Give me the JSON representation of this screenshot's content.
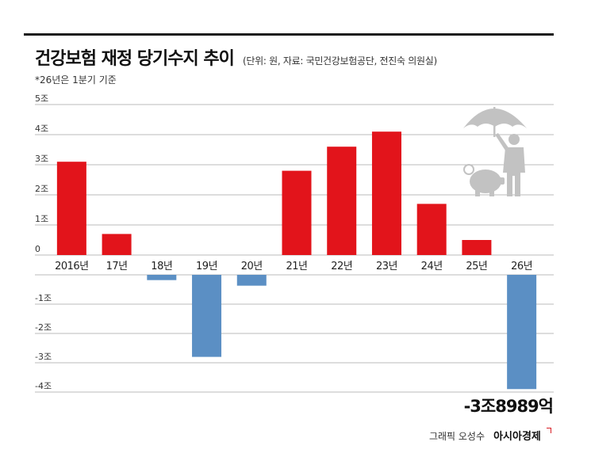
{
  "header": {
    "title": "건강보험 재정 당기수지 추이",
    "subtitle": "(단위: 원, 자료: 국민건강보험공단, 전진숙 의원실)",
    "note": "*26년은 1분기 기준"
  },
  "callout": "-3조8989억",
  "credit": {
    "graphic": "그래픽 오성수",
    "brand": "아시아경제"
  },
  "colors": {
    "positive": "#e2141b",
    "negative": "#5b8fc4",
    "grid": "#bbbbbb",
    "icon": "#c2c2c2"
  },
  "icon": "umbrella-man-piggy-bank-icon",
  "chart_data": {
    "type": "bar",
    "categories": [
      "2016년",
      "17년",
      "18년",
      "19년",
      "20년",
      "21년",
      "22년",
      "23년",
      "24년",
      "25년",
      "26년"
    ],
    "values": [
      3.1,
      0.7,
      -0.18,
      -2.8,
      -0.37,
      2.8,
      3.6,
      4.1,
      1.7,
      0.5,
      -3.8989
    ],
    "yticks_pos": [
      {
        "value": 5,
        "label": "5조"
      },
      {
        "value": 4,
        "label": "4조"
      },
      {
        "value": 3,
        "label": "3조"
      },
      {
        "value": 2,
        "label": "2조"
      },
      {
        "value": 1,
        "label": "1조"
      },
      {
        "value": 0,
        "label": "0"
      }
    ],
    "yticks_neg": [
      {
        "value": -1,
        "label": "-1조"
      },
      {
        "value": -2,
        "label": "-2조"
      },
      {
        "value": -3,
        "label": "-3조"
      },
      {
        "value": -4,
        "label": "-4조"
      }
    ],
    "ylim": [
      -4,
      5
    ],
    "grid": true
  }
}
